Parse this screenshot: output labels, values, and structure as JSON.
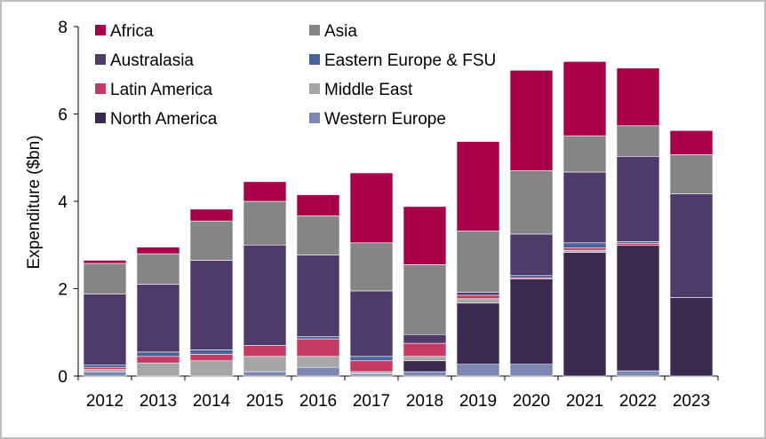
{
  "chart_data": {
    "type": "bar",
    "stacked": true,
    "ylabel": "Expenditure ($bn)",
    "ylim": [
      0,
      8
    ],
    "yticks": [
      0,
      2,
      4,
      6,
      8
    ],
    "legend_position": "top-left",
    "categories": [
      "2012",
      "2013",
      "2014",
      "2015",
      "2016",
      "2017",
      "2018",
      "2019",
      "2020",
      "2021",
      "2022",
      "2023"
    ],
    "series": [
      {
        "name": "Western Europe",
        "color": "#7d87b3",
        "values": [
          0.1,
          0.0,
          0.0,
          0.1,
          0.2,
          0.05,
          0.1,
          0.27,
          0.27,
          0.0,
          0.12,
          0.0
        ]
      },
      {
        "name": "North America",
        "color": "#3b2a4f",
        "values": [
          0.0,
          0.0,
          0.0,
          0.0,
          0.0,
          0.0,
          0.25,
          1.4,
          1.95,
          2.83,
          2.87,
          1.8
        ]
      },
      {
        "name": "Middle East",
        "color": "#a6a6a6",
        "values": [
          0.05,
          0.3,
          0.35,
          0.35,
          0.25,
          0.05,
          0.1,
          0.1,
          0.0,
          0.05,
          0.0,
          0.0
        ]
      },
      {
        "name": "Latin America",
        "color": "#c63b64",
        "values": [
          0.05,
          0.15,
          0.15,
          0.25,
          0.4,
          0.25,
          0.3,
          0.08,
          0.03,
          0.05,
          0.05,
          0.0
        ]
      },
      {
        "name": "Eastern Europe & FSU",
        "color": "#4a6199",
        "values": [
          0.05,
          0.1,
          0.1,
          0.0,
          0.05,
          0.1,
          0.0,
          0.0,
          0.05,
          0.12,
          0.04,
          0.0
        ]
      },
      {
        "name": "Australasia",
        "color": "#4f3b6a",
        "values": [
          1.63,
          1.55,
          2.05,
          2.3,
          1.87,
          1.5,
          0.2,
          0.07,
          0.95,
          1.62,
          1.95,
          2.37
        ]
      },
      {
        "name": "Asia",
        "color": "#858585",
        "values": [
          0.7,
          0.7,
          0.9,
          1.0,
          0.9,
          1.1,
          1.6,
          1.4,
          1.45,
          0.83,
          0.7,
          0.9
        ]
      },
      {
        "name": "Africa",
        "color": "#a8004b",
        "values": [
          0.07,
          0.15,
          0.27,
          0.45,
          0.48,
          1.6,
          1.33,
          2.05,
          2.3,
          1.7,
          1.32,
          0.55
        ]
      }
    ],
    "legend_order": [
      "Africa",
      "Asia",
      "Australasia",
      "Eastern Europe & FSU",
      "Latin America",
      "Middle East",
      "North America",
      "Western Europe"
    ]
  }
}
